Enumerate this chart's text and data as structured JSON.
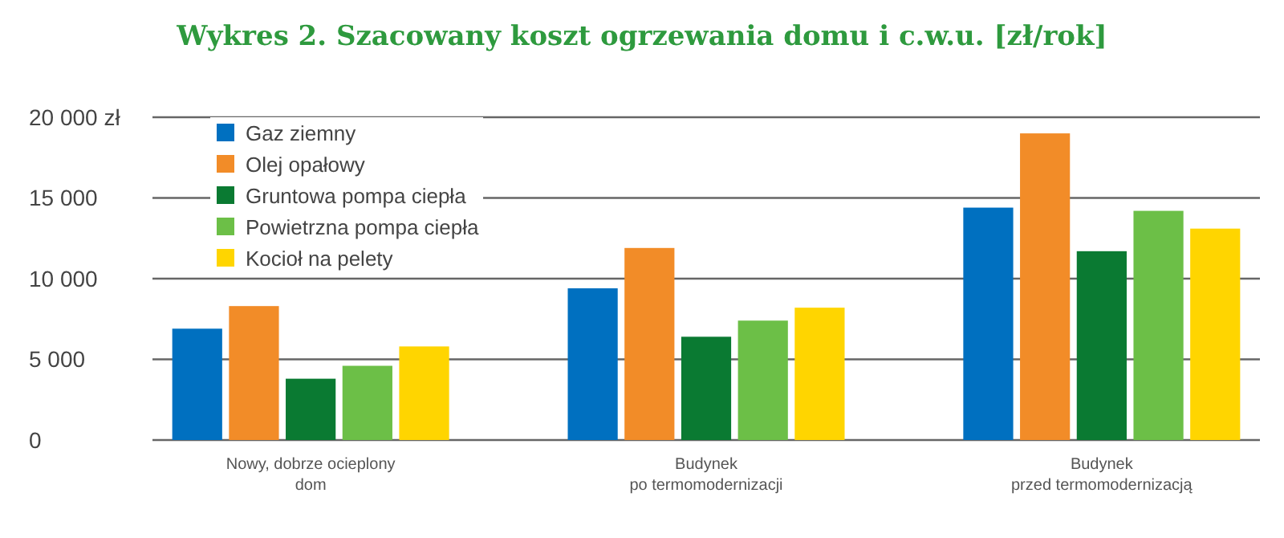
{
  "chart_data": {
    "type": "bar",
    "title": "Wykres 2. Szacowany koszt ogrzewania domu i c.w.u. [zł/rok]",
    "categories": [
      "Nowy, dobrze ocieplony\ndom",
      "Budynek\npo termomodernizacji",
      "Budynek\nprzed termomodernizacją"
    ],
    "series": [
      {
        "name": "Gaz ziemny",
        "color": "#0070c0",
        "values": [
          6900,
          9400,
          14400
        ]
      },
      {
        "name": "Olej opałowy",
        "color": "#f28c28",
        "values": [
          8300,
          11900,
          19000
        ]
      },
      {
        "name": "Gruntowa pompa ciepła",
        "color": "#0a7a32",
        "values": [
          3800,
          6400,
          11700
        ]
      },
      {
        "name": "Powietrzna pompa ciepła",
        "color": "#6cbf47",
        "values": [
          4600,
          7400,
          14200
        ]
      },
      {
        "name": "Kocioł na pelety",
        "color": "#ffd500",
        "values": [
          5800,
          8200,
          13100
        ]
      }
    ],
    "ylim": [
      0,
      20000
    ],
    "yticks": [
      0,
      {
        "value": 5000,
        "label": "5 000"
      },
      {
        "value": 10000,
        "label": "10 000"
      },
      {
        "value": 15000,
        "label": "15 000"
      },
      {
        "value": 20000,
        "label": "20 000 zł"
      }
    ],
    "grid": "y",
    "legend": "top left"
  }
}
